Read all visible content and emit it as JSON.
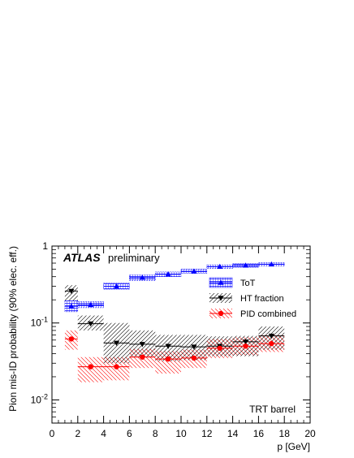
{
  "chart_data": {
    "type": "scatter",
    "title": "",
    "xlabel": "p [GeV]",
    "ylabel": "Pion mis-ID probability (90% elec. eff.)",
    "xlim": [
      0,
      20
    ],
    "ylim": [
      0.005,
      1
    ],
    "yscale": "log",
    "grid": false,
    "legend_position": "right",
    "x_ticks": [
      0,
      2,
      4,
      6,
      8,
      10,
      12,
      14,
      16,
      18,
      20
    ],
    "y_ticks": [
      {
        "value": 1,
        "label": "1"
      },
      {
        "value": 0.1,
        "label": "10^-1"
      },
      {
        "value": 0.01,
        "label": "10^-2"
      }
    ],
    "annotations": {
      "experiment": "ATLAS",
      "status": "preliminary",
      "region": "TRT barrel"
    },
    "series": [
      {
        "name": "ToT",
        "color": "#0000ff",
        "marker": "triangle-up",
        "hatch": "dense-blue",
        "points": [
          {
            "x": 1.5,
            "y": 0.165,
            "xerr": 0.5,
            "band": [
              0.14,
              0.195
            ]
          },
          {
            "x": 3,
            "y": 0.172,
            "xerr": 1,
            "band": [
              0.158,
              0.19
            ]
          },
          {
            "x": 5,
            "y": 0.3,
            "xerr": 1,
            "band": [
              0.275,
              0.33
            ]
          },
          {
            "x": 7,
            "y": 0.39,
            "xerr": 1,
            "band": [
              0.355,
              0.42
            ]
          },
          {
            "x": 9,
            "y": 0.43,
            "xerr": 1,
            "band": [
              0.4,
              0.46
            ]
          },
          {
            "x": 11,
            "y": 0.47,
            "xerr": 1,
            "band": [
              0.44,
              0.5
            ]
          },
          {
            "x": 13,
            "y": 0.54,
            "xerr": 1,
            "band": [
              0.51,
              0.57
            ]
          },
          {
            "x": 15,
            "y": 0.56,
            "xerr": 1,
            "band": [
              0.53,
              0.59
            ]
          },
          {
            "x": 17,
            "y": 0.58,
            "xerr": 1,
            "band": [
              0.55,
              0.61
            ]
          }
        ]
      },
      {
        "name": "HT fraction",
        "color": "#000000",
        "marker": "triangle-down",
        "hatch": "black-diagonal",
        "points": [
          {
            "x": 1.5,
            "y": 0.26,
            "xerr": 0.5,
            "band": [
              0.19,
              0.31
            ]
          },
          {
            "x": 3,
            "y": 0.098,
            "xerr": 1,
            "band": [
              0.08,
              0.125
            ]
          },
          {
            "x": 5,
            "y": 0.055,
            "xerr": 1,
            "band": [
              0.03,
              0.1
            ]
          },
          {
            "x": 7,
            "y": 0.053,
            "xerr": 1,
            "band": [
              0.036,
              0.08
            ]
          },
          {
            "x": 9,
            "y": 0.05,
            "xerr": 1,
            "band": [
              0.032,
              0.07
            ]
          },
          {
            "x": 11,
            "y": 0.049,
            "xerr": 1,
            "band": [
              0.033,
              0.07
            ]
          },
          {
            "x": 13,
            "y": 0.05,
            "xerr": 1,
            "band": [
              0.037,
              0.067
            ]
          },
          {
            "x": 15,
            "y": 0.057,
            "xerr": 1,
            "band": [
              0.037,
              0.068
            ]
          },
          {
            "x": 17,
            "y": 0.068,
            "xerr": 1,
            "band": [
              0.045,
              0.09
            ]
          }
        ]
      },
      {
        "name": "PID combined",
        "color": "#ff0000",
        "marker": "circle",
        "hatch": "red-diagonal",
        "points": [
          {
            "x": 1.5,
            "y": 0.062,
            "xerr": 0.5,
            "band": [
              0.045,
              0.08
            ]
          },
          {
            "x": 3,
            "y": 0.027,
            "xerr": 1,
            "band": [
              0.017,
              0.036
            ]
          },
          {
            "x": 5,
            "y": 0.027,
            "xerr": 1,
            "band": [
              0.018,
              0.036
            ]
          },
          {
            "x": 7,
            "y": 0.036,
            "xerr": 1,
            "band": [
              0.026,
              0.046
            ]
          },
          {
            "x": 9,
            "y": 0.034,
            "xerr": 1,
            "band": [
              0.022,
              0.043
            ]
          },
          {
            "x": 11,
            "y": 0.035,
            "xerr": 1,
            "band": [
              0.026,
              0.045
            ]
          },
          {
            "x": 13,
            "y": 0.047,
            "xerr": 1,
            "band": [
              0.035,
              0.062
            ]
          },
          {
            "x": 15,
            "y": 0.05,
            "xerr": 1,
            "band": [
              0.038,
              0.065
            ]
          },
          {
            "x": 17,
            "y": 0.054,
            "xerr": 1,
            "band": [
              0.042,
              0.07
            ]
          }
        ]
      }
    ]
  }
}
